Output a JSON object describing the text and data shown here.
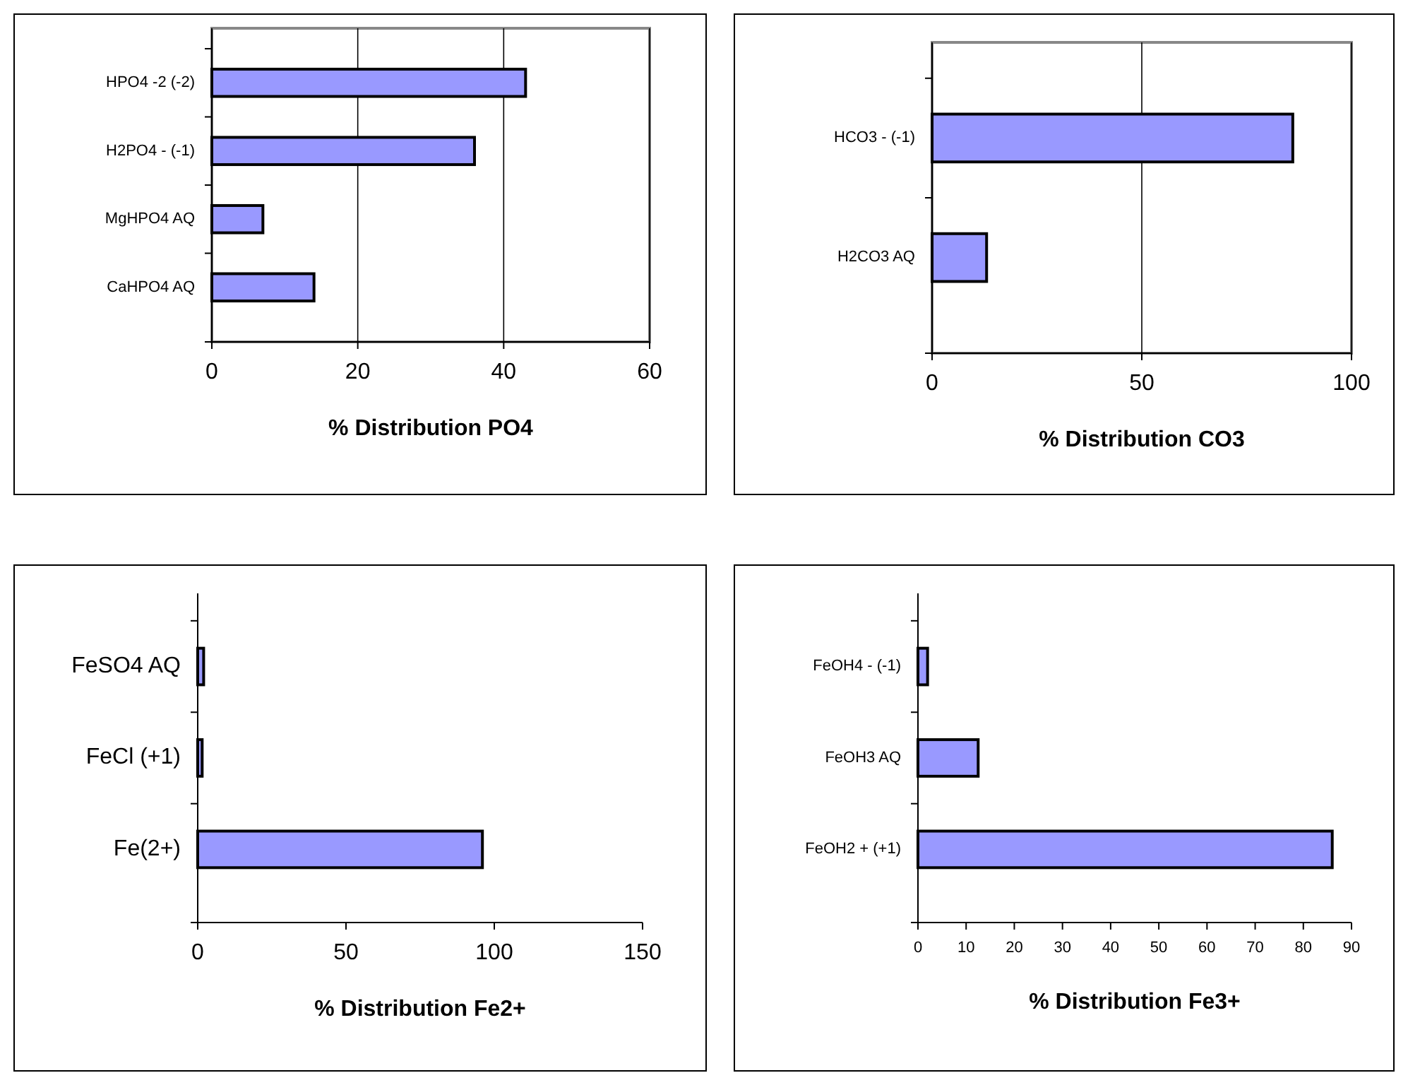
{
  "chart_data": [
    {
      "type": "bar",
      "orientation": "horizontal",
      "xlabel": "% Distribution PO4",
      "categories": [
        "HPO4 -2 (-2)",
        "H2PO4 - (-1)",
        "MgHPO4 AQ",
        "CaHPO4 AQ"
      ],
      "values": [
        43,
        36,
        7,
        14
      ],
      "color": "#9999ff",
      "xlim": [
        0,
        60
      ],
      "xticks": [
        0,
        20,
        40,
        60
      ],
      "grid": "x"
    },
    {
      "type": "bar",
      "orientation": "horizontal",
      "xlabel": "% Distribution CO3",
      "categories": [
        "HCO3 - (-1)",
        "H2CO3 AQ"
      ],
      "values": [
        86,
        13
      ],
      "color": "#9999ff",
      "xlim": [
        0,
        100
      ],
      "xticks": [
        0,
        50,
        100
      ],
      "grid": "x"
    },
    {
      "type": "bar",
      "orientation": "horizontal",
      "xlabel": "% Distribution Fe2+",
      "categories": [
        "FeSO4 AQ",
        "FeCl (+1)",
        "Fe(2+)"
      ],
      "values": [
        2,
        1.5,
        96
      ],
      "color": "#9999ff",
      "xlim": [
        0,
        150
      ],
      "xticks": [
        0,
        50,
        100,
        150
      ]
    },
    {
      "type": "bar",
      "orientation": "horizontal",
      "xlabel": "% Distribution Fe3+",
      "categories": [
        "FeOH4 - (-1)",
        "FeOH3 AQ",
        "FeOH2 + (+1)"
      ],
      "values": [
        2,
        12.5,
        86
      ],
      "color": "#9999ff",
      "xlim": [
        0,
        90
      ],
      "xticks": [
        0,
        10,
        20,
        30,
        40,
        50,
        60,
        70,
        80,
        90
      ]
    }
  ]
}
